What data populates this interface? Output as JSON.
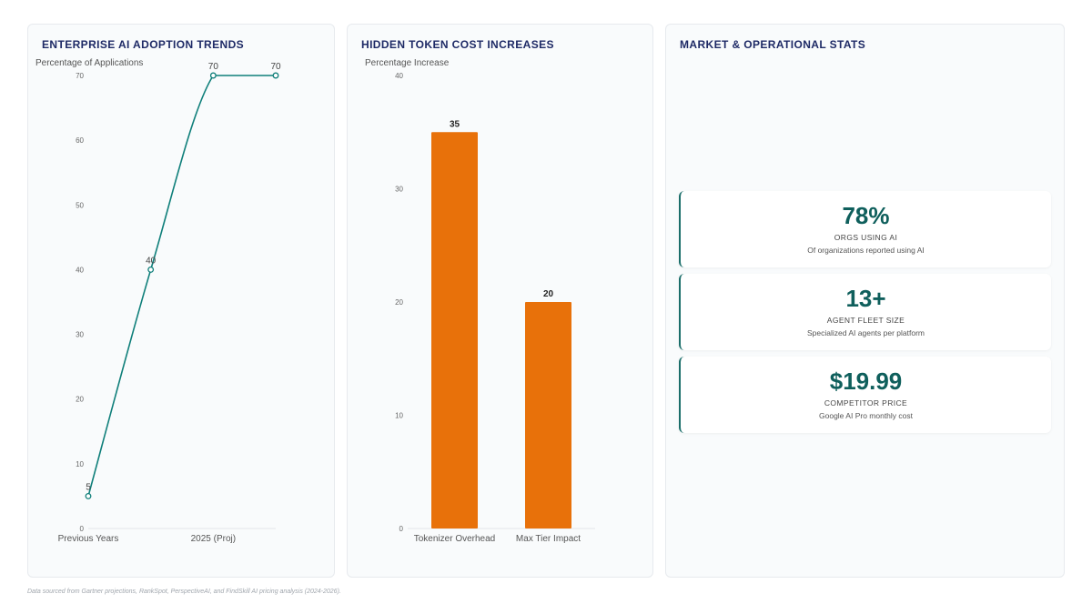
{
  "chart_data": [
    {
      "type": "line",
      "title": "ENTERPRISE AI ADOPTION TRENDS",
      "ylabel": "Percentage of Applications",
      "categories": [
        "Previous Years",
        "",
        "2025 (Proj)",
        ""
      ],
      "values": [
        5,
        40,
        70,
        70
      ],
      "point_labels": [
        "5",
        "40",
        "70",
        "70"
      ],
      "ylim": [
        0,
        70
      ],
      "yticks": [
        "0",
        "10",
        "20",
        "30",
        "40",
        "50",
        "60",
        "70"
      ],
      "color": "#0f7f7a",
      "grid": false
    },
    {
      "type": "bar",
      "title": "HIDDEN TOKEN COST INCREASES",
      "ylabel": "Percentage Increase",
      "categories": [
        "Tokenizer Overhead",
        "Max Tier Impact"
      ],
      "values": [
        35,
        20
      ],
      "value_labels": [
        "35",
        "20"
      ],
      "ylim": [
        0,
        40
      ],
      "yticks": [
        "0",
        "10",
        "20",
        "30",
        "40"
      ],
      "color": "#e8710a",
      "grid": false
    }
  ],
  "stats": {
    "title": "MARKET & OPERATIONAL STATS",
    "accent": "#0f5f5c",
    "cards": [
      {
        "value": "78%",
        "label": "ORGS USING AI",
        "desc": "Of organizations reported using AI"
      },
      {
        "value": "13+",
        "label": "AGENT FLEET SIZE",
        "desc": "Specialized AI agents per platform"
      },
      {
        "value": "$19.99",
        "label": "COMPETITOR PRICE",
        "desc": "Google AI Pro monthly cost"
      }
    ]
  },
  "footnote": "Data sourced from Gartner projections, RankSpot, PerspectiveAI, and FindSkill AI pricing analysis (2024-2026)."
}
